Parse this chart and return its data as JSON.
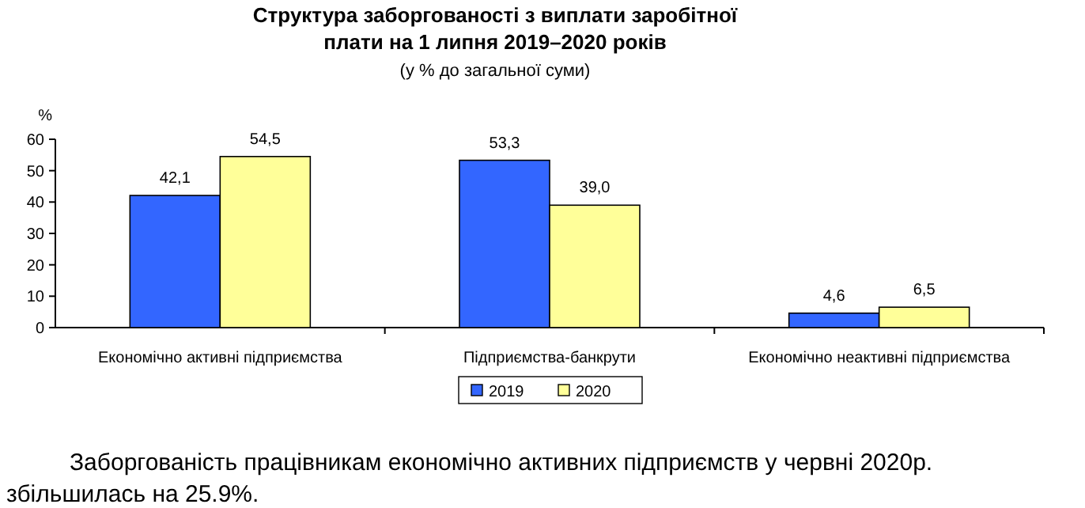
{
  "chart_data": {
    "type": "bar",
    "title": "Структура заборгованості з виплати заробітної плати на 1 липня 2019–2020 років",
    "subtitle": "(у % до загальної суми)",
    "ylabel": "%",
    "categories": [
      "Економічно активні підприємства",
      "Підприємства-банкрути",
      "Економічно неактивні підприємства"
    ],
    "series": [
      {
        "name": "2019",
        "color": "#3366ff",
        "values": [
          42.1,
          53.3,
          4.6
        ],
        "value_labels": [
          "42,1",
          "53,3",
          "4,6"
        ]
      },
      {
        "name": "2020",
        "color": "#ffff99",
        "values": [
          54.5,
          39.0,
          6.5
        ],
        "value_labels": [
          "54,5",
          "39,0",
          "6,5"
        ]
      }
    ],
    "ylim": [
      0,
      60
    ],
    "yticks": [
      0,
      10,
      20,
      30,
      40,
      50,
      60
    ],
    "grid": false,
    "legend": "bottom",
    "annotations": [
      "Заборгованість працівникам економічно активних підприємств у червні 2020р. збільшилась на 25.9%."
    ]
  }
}
